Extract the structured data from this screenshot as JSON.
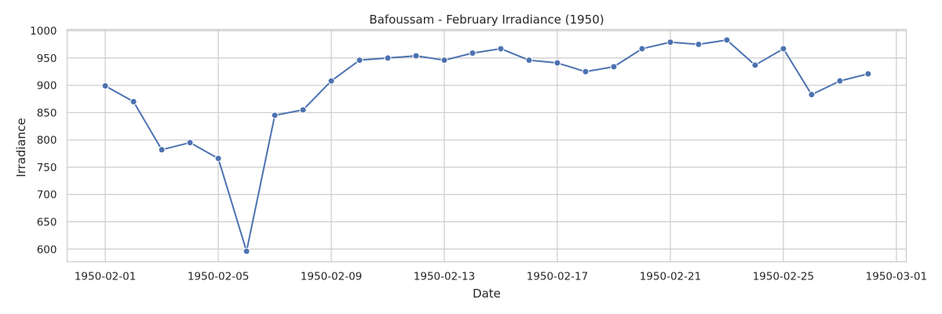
{
  "chart_data": {
    "type": "line",
    "title": "Bafoussam - February Irradiance (1950)",
    "xlabel": "Date",
    "ylabel": "Irradiance",
    "grid": true,
    "legend": "none",
    "x": [
      "1950-02-01",
      "1950-02-02",
      "1950-02-03",
      "1950-02-04",
      "1950-02-05",
      "1950-02-06",
      "1950-02-07",
      "1950-02-08",
      "1950-02-09",
      "1950-02-10",
      "1950-02-11",
      "1950-02-12",
      "1950-02-13",
      "1950-02-14",
      "1950-02-15",
      "1950-02-16",
      "1950-02-17",
      "1950-02-18",
      "1950-02-19",
      "1950-02-20",
      "1950-02-21",
      "1950-02-22",
      "1950-02-23",
      "1950-02-24",
      "1950-02-25",
      "1950-02-26",
      "1950-02-27",
      "1950-02-28"
    ],
    "series": [
      {
        "values": [
          899,
          870,
          782,
          795,
          766,
          596,
          845,
          855,
          908,
          946,
          950,
          954,
          946,
          959,
          967,
          946,
          941,
          925,
          934,
          967,
          979,
          975,
          983,
          937,
          967,
          883,
          908,
          921
        ],
        "color": "#4c72b0"
      }
    ],
    "xticks": [
      "1950-02-01",
      "1950-02-05",
      "1950-02-09",
      "1950-02-13",
      "1950-02-17",
      "1950-02-21",
      "1950-02-25",
      "1950-03-01"
    ],
    "yticks": [
      600,
      650,
      700,
      750,
      800,
      850,
      900,
      950,
      1000
    ],
    "xlim": [
      "1950-01-30.65",
      "1950-03-01.35"
    ],
    "ylim": [
      576.65,
      1002.35
    ]
  }
}
